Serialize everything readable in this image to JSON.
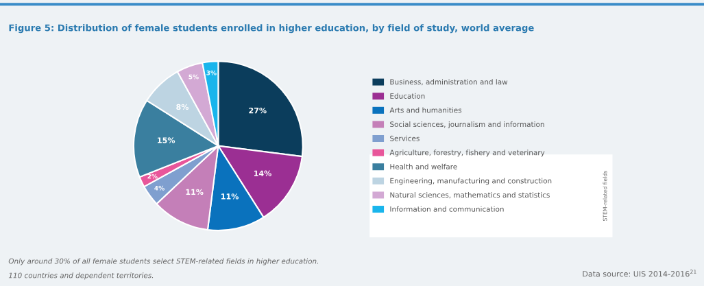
{
  "chart_data": {
    "type": "pie",
    "title": "Figure 5: Distribution of female students enrolled in higher education, by field of study, world average",
    "categories": [
      "Business, administration and law",
      "Education",
      "Arts and humanities",
      "Social sciences, journalism and information",
      "Services",
      "Agriculture, forestry, fishery and veterinary",
      "Health and welfare",
      "Engineering, manufacturing and construction",
      "Natural sciences, mathematics and statistics",
      "Information and communication"
    ],
    "values": [
      27,
      14,
      11,
      11,
      4,
      2,
      15,
      8,
      5,
      3
    ],
    "value_labels": [
      "27%",
      "14%",
      "11%",
      "11%",
      "4%",
      "2%",
      "15%",
      "8%",
      "5%",
      "3%"
    ],
    "colors": [
      "#0b3d5c",
      "#9b2f93",
      "#0a72bd",
      "#c47fb8",
      "#7f9fcf",
      "#e8569a",
      "#3a7f9f",
      "#bdd4e2",
      "#d3a9d4",
      "#19b5ec"
    ],
    "legend": "right",
    "annotations": [
      "STEM-related fields",
      "Only around 30% of all female students select STEM-related fields in higher education.",
      "110 countries and dependent territories.",
      "Data source: UIS 2014-2016$^{21}$"
    ]
  }
}
